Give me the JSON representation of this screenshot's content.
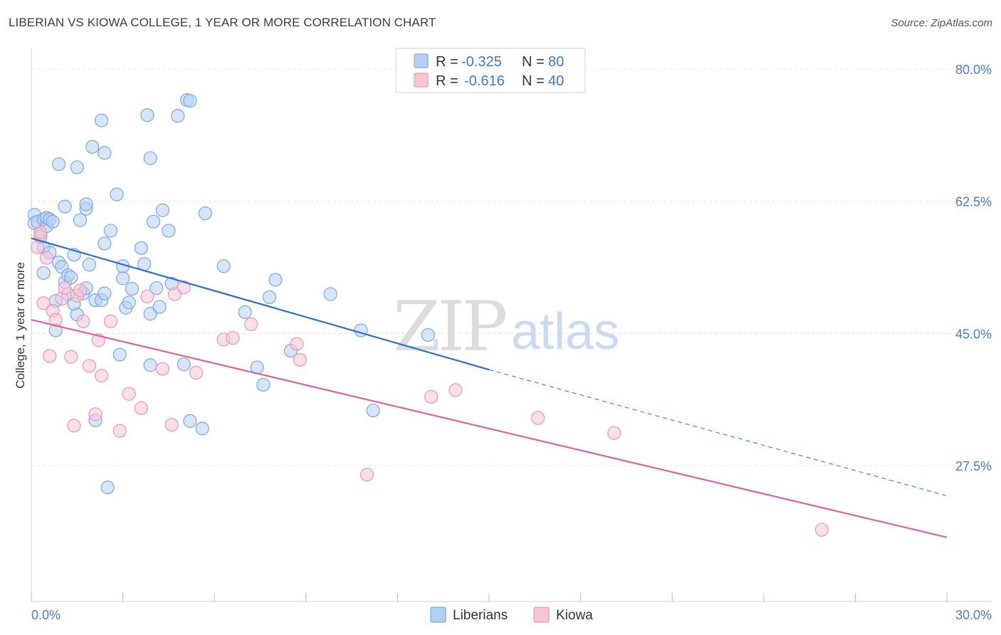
{
  "title": "LIBERIAN VS KIOWA COLLEGE, 1 YEAR OR MORE CORRELATION CHART",
  "source": "Source: ZipAtlas.com",
  "colors": {
    "liberians_fill": "#b5cff3",
    "liberians_stroke": "#7aa8e6",
    "liberians_line": "#2a6fd0",
    "kiowa_fill": "#f7c4d4",
    "kiowa_stroke": "#ee95b2",
    "kiowa_line": "#e0668e",
    "grid": "#e4e4e4",
    "axis_label": "#4a7bd0"
  },
  "legend": {
    "r_label": "R =",
    "n_label": "N =",
    "liberians_r": "-0.325",
    "liberians_n": "80",
    "kiowa_r": "-0.616",
    "kiowa_n": "40"
  },
  "watermark": {
    "zip": "ZIP",
    "atlas": "atlas"
  },
  "chart_data": {
    "type": "scatter",
    "title": "LIBERIAN VS KIOWA COLLEGE, 1 YEAR OR MORE CORRELATION CHART",
    "xlabel": "",
    "ylabel": "College, 1 year or more",
    "xlim": [
      0,
      30
    ],
    "ylim": [
      12,
      84
    ],
    "x_tick_labels": [
      "0.0%",
      "30.0%"
    ],
    "y_ticks": [
      27.5,
      45.0,
      62.5,
      80.0
    ],
    "y_tick_labels": [
      "27.5%",
      "45.0%",
      "62.5%",
      "80.0%"
    ],
    "grid": true,
    "legend_position": "bottom-center",
    "series": [
      {
        "name": "Liberians",
        "r": -0.325,
        "n": 80,
        "trend": {
          "x0": 0,
          "y0": 57.6,
          "x1": 15,
          "y1": 40.2,
          "dash_to_x": 30,
          "dash_to_y": 23.5
        },
        "points": [
          [
            0.1,
            60.7
          ],
          [
            0.1,
            59.6
          ],
          [
            0.2,
            59.8
          ],
          [
            0.3,
            58.1
          ],
          [
            0.3,
            57.8
          ],
          [
            0.4,
            60.1
          ],
          [
            0.4,
            53.0
          ],
          [
            0.4,
            56.4
          ],
          [
            0.5,
            59.2
          ],
          [
            0.5,
            60.3
          ],
          [
            0.6,
            55.7
          ],
          [
            0.6,
            60.1
          ],
          [
            0.7,
            59.8
          ],
          [
            0.8,
            49.3
          ],
          [
            0.8,
            45.4
          ],
          [
            0.9,
            54.4
          ],
          [
            0.9,
            67.4
          ],
          [
            1.0,
            53.8
          ],
          [
            1.1,
            51.8
          ],
          [
            1.1,
            61.8
          ],
          [
            1.2,
            50.2
          ],
          [
            1.2,
            52.7
          ],
          [
            1.3,
            52.4
          ],
          [
            1.4,
            55.4
          ],
          [
            1.4,
            48.9
          ],
          [
            1.5,
            47.5
          ],
          [
            1.5,
            67.0
          ],
          [
            1.6,
            60.0
          ],
          [
            1.7,
            50.3
          ],
          [
            1.8,
            51.0
          ],
          [
            1.8,
            61.5
          ],
          [
            1.8,
            62.1
          ],
          [
            1.9,
            54.1
          ],
          [
            2.0,
            69.7
          ],
          [
            2.1,
            49.4
          ],
          [
            2.1,
            33.5
          ],
          [
            2.3,
            49.4
          ],
          [
            2.3,
            73.2
          ],
          [
            2.4,
            68.9
          ],
          [
            2.4,
            50.3
          ],
          [
            2.4,
            56.9
          ],
          [
            2.5,
            24.6
          ],
          [
            2.6,
            58.6
          ],
          [
            2.8,
            63.4
          ],
          [
            2.9,
            42.2
          ],
          [
            3.0,
            52.3
          ],
          [
            3.0,
            53.9
          ],
          [
            3.1,
            48.4
          ],
          [
            3.2,
            49.1
          ],
          [
            3.3,
            50.9
          ],
          [
            3.6,
            56.3
          ],
          [
            3.7,
            54.2
          ],
          [
            3.8,
            73.9
          ],
          [
            3.9,
            68.2
          ],
          [
            3.9,
            40.8
          ],
          [
            3.9,
            47.6
          ],
          [
            4.0,
            59.8
          ],
          [
            4.1,
            51.0
          ],
          [
            4.2,
            48.5
          ],
          [
            4.3,
            61.3
          ],
          [
            4.5,
            58.6
          ],
          [
            4.6,
            51.6
          ],
          [
            4.8,
            73.8
          ],
          [
            5.0,
            40.9
          ],
          [
            5.1,
            75.9
          ],
          [
            5.2,
            75.8
          ],
          [
            5.2,
            33.4
          ],
          [
            5.6,
            32.4
          ],
          [
            5.7,
            60.9
          ],
          [
            6.3,
            53.9
          ],
          [
            7.0,
            47.8
          ],
          [
            7.4,
            40.5
          ],
          [
            7.6,
            38.2
          ],
          [
            7.8,
            49.8
          ],
          [
            8.0,
            52.1
          ],
          [
            8.5,
            42.7
          ],
          [
            9.8,
            50.2
          ],
          [
            10.8,
            45.4
          ],
          [
            11.2,
            34.8
          ],
          [
            13.0,
            44.8
          ]
        ]
      },
      {
        "name": "Kiowa",
        "r": -0.616,
        "n": 40,
        "trend": {
          "x0": 0,
          "y0": 46.8,
          "x1": 30,
          "y1": 18.0
        },
        "points": [
          [
            0.2,
            56.4
          ],
          [
            0.3,
            57.8
          ],
          [
            0.3,
            58.4
          ],
          [
            0.4,
            49.0
          ],
          [
            0.5,
            55.0
          ],
          [
            0.6,
            42.0
          ],
          [
            0.7,
            48.0
          ],
          [
            0.8,
            46.8
          ],
          [
            1.0,
            49.6
          ],
          [
            1.1,
            51.0
          ],
          [
            1.3,
            41.9
          ],
          [
            1.4,
            32.8
          ],
          [
            1.5,
            50.0
          ],
          [
            1.6,
            50.7
          ],
          [
            1.7,
            46.6
          ],
          [
            1.9,
            40.7
          ],
          [
            2.1,
            34.3
          ],
          [
            2.2,
            44.1
          ],
          [
            2.3,
            39.4
          ],
          [
            2.6,
            46.6
          ],
          [
            2.9,
            32.1
          ],
          [
            3.2,
            37.0
          ],
          [
            3.6,
            35.1
          ],
          [
            3.8,
            49.9
          ],
          [
            4.3,
            40.3
          ],
          [
            4.6,
            32.9
          ],
          [
            4.7,
            50.2
          ],
          [
            5.0,
            51.1
          ],
          [
            5.4,
            39.8
          ],
          [
            6.3,
            44.2
          ],
          [
            6.6,
            44.4
          ],
          [
            7.2,
            46.2
          ],
          [
            8.7,
            43.6
          ],
          [
            8.8,
            41.5
          ],
          [
            11.0,
            26.3
          ],
          [
            13.1,
            36.6
          ],
          [
            13.9,
            37.5
          ],
          [
            16.6,
            33.8
          ],
          [
            19.1,
            31.8
          ],
          [
            25.9,
            19.0
          ]
        ]
      }
    ]
  }
}
